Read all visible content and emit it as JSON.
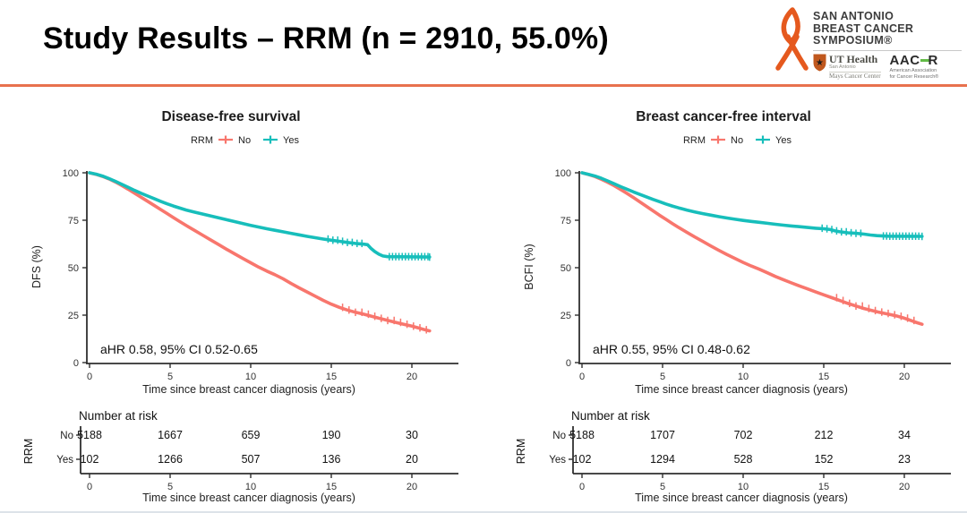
{
  "slide": {
    "title": "Study Results – RRM (n = 2910, 55.0%)",
    "accent_color": "#E8714E"
  },
  "logo": {
    "org_lines": [
      "SAN ANTONIO",
      "BREAST CANCER",
      "SYMPOSIUM®"
    ],
    "ribbon_color": "#E5591E",
    "partners": {
      "ut_health": {
        "name": "UT Health",
        "sub": "San Antonio",
        "center": "Mays Cancer Center"
      },
      "aacr": {
        "abbr_left": "AAC",
        "abbr_right": "R",
        "accent": "#62BB46",
        "sub1": "American Association",
        "sub2": "for Cancer Research®"
      }
    }
  },
  "chart_data": [
    {
      "type": "line",
      "title": "Disease-free survival",
      "xlabel": "Time since breast cancer diagnosis (years)",
      "ylabel": "DFS (%)",
      "annotation": "aHR 0.58, 95% CI 0.52-0.65",
      "xlim": [
        0,
        21.5
      ],
      "ylim": [
        0,
        100
      ],
      "xticks": [
        0,
        5,
        10,
        15,
        20
      ],
      "yticks": [
        0,
        25,
        50,
        75,
        100
      ],
      "legend": {
        "title": "RRM",
        "position": "top"
      },
      "series": [
        {
          "name": "No",
          "color": "#F8766D",
          "points": [
            [
              0,
              100
            ],
            [
              0.4,
              99.2
            ],
            [
              0.8,
              98.1
            ],
            [
              1.2,
              96.8
            ],
            [
              1.6,
              95.2
            ],
            [
              2,
              93.3
            ],
            [
              2.4,
              91.3
            ],
            [
              2.8,
              89.2
            ],
            [
              3.2,
              87.1
            ],
            [
              3.6,
              85
            ],
            [
              4,
              82.9
            ],
            [
              4.4,
              80.7
            ],
            [
              4.8,
              78.6
            ],
            [
              5.2,
              76.4
            ],
            [
              5.6,
              74.3
            ],
            [
              6,
              72.2
            ],
            [
              6.5,
              69.7
            ],
            [
              7,
              67.2
            ],
            [
              7.5,
              64.7
            ],
            [
              8,
              62.2
            ],
            [
              8.5,
              59.7
            ],
            [
              9,
              57.3
            ],
            [
              9.5,
              54.9
            ],
            [
              10,
              52.6
            ],
            [
              10.5,
              50.3
            ],
            [
              11,
              48.2
            ],
            [
              11.5,
              46.3
            ],
            [
              12,
              44.2
            ],
            [
              12.5,
              41.7
            ],
            [
              13,
              39.4
            ],
            [
              13.5,
              37.2
            ],
            [
              14,
              35
            ],
            [
              14.5,
              32.8
            ],
            [
              15,
              30.8
            ],
            [
              15.5,
              29.1
            ],
            [
              16,
              27.7
            ],
            [
              16.5,
              26.5
            ],
            [
              17,
              25.5
            ],
            [
              17.5,
              24.4
            ],
            [
              18,
              23.3
            ],
            [
              18.5,
              22.2
            ],
            [
              19,
              21.2
            ],
            [
              19.5,
              20.2
            ],
            [
              20,
              19.2
            ],
            [
              20.4,
              18.3
            ],
            [
              20.8,
              17.3
            ],
            [
              21.1,
              16.7
            ]
          ],
          "censor_times": [
            15.7,
            16.1,
            16.5,
            16.9,
            17.3,
            17.7,
            18.1,
            18.5,
            18.9,
            19.3,
            19.7,
            20.1,
            20.5,
            20.9
          ]
        },
        {
          "name": "Yes",
          "color": "#17BEBB",
          "points": [
            [
              0,
              100
            ],
            [
              0.4,
              99.3
            ],
            [
              0.8,
              98.3
            ],
            [
              1.2,
              97
            ],
            [
              1.6,
              95.5
            ],
            [
              2,
              93.9
            ],
            [
              2.4,
              92.3
            ],
            [
              2.8,
              90.7
            ],
            [
              3.2,
              89.2
            ],
            [
              3.6,
              87.8
            ],
            [
              4,
              86.4
            ],
            [
              4.4,
              85
            ],
            [
              4.8,
              83.7
            ],
            [
              5.2,
              82.5
            ],
            [
              5.6,
              81.4
            ],
            [
              6,
              80.4
            ],
            [
              6.5,
              79.3
            ],
            [
              7,
              78.3
            ],
            [
              7.5,
              77.3
            ],
            [
              8,
              76.3
            ],
            [
              8.5,
              75.3
            ],
            [
              9,
              74.3
            ],
            [
              9.5,
              73.3
            ],
            [
              10,
              72.3
            ],
            [
              10.5,
              71.4
            ],
            [
              11,
              70.5
            ],
            [
              11.5,
              69.7
            ],
            [
              12,
              68.9
            ],
            [
              12.5,
              68.1
            ],
            [
              13,
              67.3
            ],
            [
              13.5,
              66.5
            ],
            [
              14,
              65.8
            ],
            [
              14.5,
              65.1
            ],
            [
              15,
              64.5
            ],
            [
              15.5,
              63.9
            ],
            [
              16,
              63.3
            ],
            [
              16.5,
              62.8
            ],
            [
              17,
              62.4
            ],
            [
              17.25,
              62.1
            ],
            [
              17.45,
              60.3
            ],
            [
              17.7,
              58.5
            ],
            [
              17.95,
              57.1
            ],
            [
              18.2,
              56.2
            ],
            [
              18.5,
              55.8
            ],
            [
              21.1,
              55.6
            ]
          ],
          "censor_times": [
            14.8,
            15.1,
            15.4,
            15.7,
            16,
            16.3,
            16.6,
            16.9,
            18.6,
            18.8,
            19,
            19.2,
            19.4,
            19.6,
            19.8,
            20,
            20.2,
            20.4,
            20.6,
            20.8,
            21,
            21.1
          ]
        }
      ],
      "risk_table": {
        "title": "Number at risk",
        "group_label": "RRM",
        "time_points": [
          0,
          5,
          10,
          15,
          20
        ],
        "rows": [
          {
            "label": "No",
            "values": [
              "5188",
              "1667",
              "659",
              "190",
              "30"
            ]
          },
          {
            "label": "Yes",
            "values": [
              "102",
              "1266",
              "507",
              "136",
              "20"
            ]
          }
        ]
      }
    },
    {
      "type": "line",
      "title": "Breast cancer-free interval",
      "xlabel": "Time since breast cancer diagnosis (years)",
      "ylabel": "BCFI (%)",
      "annotation": "aHR 0.55, 95% CI 0.48-0.62",
      "xlim": [
        0,
        21.5
      ],
      "ylim": [
        0,
        100
      ],
      "xticks": [
        0,
        5,
        10,
        15,
        20
      ],
      "yticks": [
        0,
        25,
        50,
        75,
        100
      ],
      "legend": {
        "title": "RRM",
        "position": "top"
      },
      "series": [
        {
          "name": "No",
          "color": "#F8766D",
          "points": [
            [
              0,
              100
            ],
            [
              0.4,
              99.1
            ],
            [
              0.8,
              98
            ],
            [
              1.2,
              96.6
            ],
            [
              1.6,
              95
            ],
            [
              2,
              93.2
            ],
            [
              2.4,
              91.2
            ],
            [
              2.8,
              89.1
            ],
            [
              3.2,
              86.9
            ],
            [
              3.6,
              84.6
            ],
            [
              4,
              82.3
            ],
            [
              4.4,
              80
            ],
            [
              4.8,
              77.7
            ],
            [
              5.2,
              75.5
            ],
            [
              5.6,
              73.3
            ],
            [
              6,
              71.2
            ],
            [
              6.5,
              68.7
            ],
            [
              7,
              66.2
            ],
            [
              7.5,
              63.8
            ],
            [
              8,
              61.4
            ],
            [
              8.5,
              59.1
            ],
            [
              9,
              56.9
            ],
            [
              9.5,
              54.8
            ],
            [
              10,
              52.8
            ],
            [
              10.5,
              50.9
            ],
            [
              11,
              49.2
            ],
            [
              11.5,
              47.3
            ],
            [
              12,
              45.4
            ],
            [
              12.5,
              43.7
            ],
            [
              13,
              42
            ],
            [
              13.5,
              40.4
            ],
            [
              14,
              38.8
            ],
            [
              14.5,
              37.2
            ],
            [
              15,
              35.7
            ],
            [
              15.5,
              34.2
            ],
            [
              16,
              32.7
            ],
            [
              16.5,
              31.2
            ],
            [
              17,
              29.8
            ],
            [
              17.5,
              28.5
            ],
            [
              18,
              27.4
            ],
            [
              18.4,
              26.6
            ],
            [
              18.8,
              25.9
            ],
            [
              19.2,
              25.2
            ],
            [
              19.6,
              24.4
            ],
            [
              20,
              23.4
            ],
            [
              20.4,
              22.2
            ],
            [
              20.8,
              21
            ],
            [
              21.1,
              20.2
            ]
          ],
          "censor_times": [
            15.8,
            16.2,
            16.6,
            17,
            17.4,
            17.8,
            18.2,
            18.6,
            19,
            19.4,
            19.8,
            20.2,
            20.6
          ]
        },
        {
          "name": "Yes",
          "color": "#17BEBB",
          "points": [
            [
              0,
              100
            ],
            [
              0.4,
              99.2
            ],
            [
              0.8,
              98.3
            ],
            [
              1.2,
              97.1
            ],
            [
              1.6,
              95.7
            ],
            [
              2,
              94.2
            ],
            [
              2.4,
              92.7
            ],
            [
              2.8,
              91.3
            ],
            [
              3.2,
              89.9
            ],
            [
              3.6,
              88.6
            ],
            [
              4,
              87.3
            ],
            [
              4.4,
              86
            ],
            [
              4.8,
              84.8
            ],
            [
              5.2,
              83.6
            ],
            [
              5.6,
              82.5
            ],
            [
              6,
              81.5
            ],
            [
              6.5,
              80.4
            ],
            [
              7,
              79.4
            ],
            [
              7.5,
              78.5
            ],
            [
              8,
              77.7
            ],
            [
              8.5,
              76.9
            ],
            [
              9,
              76.2
            ],
            [
              9.5,
              75.5
            ],
            [
              10,
              74.9
            ],
            [
              10.5,
              74.4
            ],
            [
              11,
              73.9
            ],
            [
              11.5,
              73.4
            ],
            [
              12,
              72.9
            ],
            [
              12.5,
              72.4
            ],
            [
              13,
              72
            ],
            [
              13.5,
              71.6
            ],
            [
              14,
              71.2
            ],
            [
              14.5,
              70.8
            ],
            [
              15,
              70.5
            ],
            [
              15.4,
              70.1
            ],
            [
              15.7,
              69.4
            ],
            [
              16,
              68.9
            ],
            [
              16.5,
              68.4
            ],
            [
              17,
              68.1
            ],
            [
              17.5,
              67.7
            ],
            [
              17.9,
              67.2
            ],
            [
              18.3,
              66.9
            ],
            [
              18.7,
              66.7
            ],
            [
              19,
              66.6
            ],
            [
              21.1,
              66.5
            ]
          ],
          "censor_times": [
            14.9,
            15.2,
            15.5,
            15.8,
            16.1,
            16.4,
            16.7,
            17,
            17.3,
            18.7,
            18.9,
            19.1,
            19.3,
            19.5,
            19.7,
            19.9,
            20.1,
            20.3,
            20.5,
            20.7,
            20.9,
            21.1
          ]
        }
      ],
      "risk_table": {
        "title": "Number at risk",
        "group_label": "RRM",
        "time_points": [
          0,
          5,
          10,
          15,
          20
        ],
        "rows": [
          {
            "label": "No",
            "values": [
              "5188",
              "1707",
              "702",
              "212",
              "34"
            ]
          },
          {
            "label": "Yes",
            "values": [
              "102",
              "1294",
              "528",
              "152",
              "23"
            ]
          }
        ]
      }
    }
  ]
}
